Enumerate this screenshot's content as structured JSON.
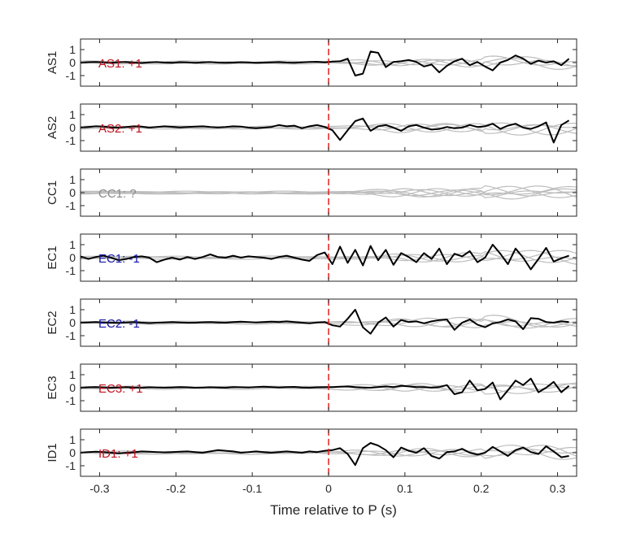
{
  "chart_data": {
    "type": "line",
    "xlabel": "Time relative to P (s)",
    "xlim": [
      -0.325,
      0.325
    ],
    "ylim": [
      -1.5,
      1.5
    ],
    "x_ticks": [
      -0.3,
      -0.2,
      -0.1,
      0,
      0.1,
      0.2,
      0.3
    ],
    "x_tick_labels": [
      "-0.3",
      "-0.2",
      "-0.1",
      "0",
      "0.1",
      "0.2",
      "0.3"
    ],
    "y_ticks": [
      -1,
      0,
      1
    ],
    "y_tick_labels": [
      "-1",
      "0",
      "1"
    ],
    "grid": false,
    "marker_time": 0,
    "colors": {
      "trace": "#000000",
      "background_traces": "#bdbdbd",
      "marker": "#e0201b",
      "positive": "#c1121f",
      "negative": "#1818a8",
      "unknown": "#8a8a8a"
    },
    "time": [
      -0.325,
      -0.315,
      -0.305,
      -0.295,
      -0.285,
      -0.275,
      -0.265,
      -0.255,
      -0.245,
      -0.235,
      -0.225,
      -0.215,
      -0.205,
      -0.195,
      -0.185,
      -0.175,
      -0.165,
      -0.155,
      -0.145,
      -0.135,
      -0.125,
      -0.115,
      -0.105,
      -0.095,
      -0.085,
      -0.075,
      -0.065,
      -0.055,
      -0.045,
      -0.035,
      -0.025,
      -0.015,
      -0.005,
      0.005,
      0.015,
      0.025,
      0.035,
      0.045,
      0.055,
      0.065,
      0.075,
      0.085,
      0.095,
      0.105,
      0.115,
      0.125,
      0.135,
      0.145,
      0.155,
      0.165,
      0.175,
      0.185,
      0.195,
      0.205,
      0.215,
      0.225,
      0.235,
      0.245,
      0.255,
      0.265,
      0.275,
      0.285,
      0.295,
      0.305,
      0.315
    ],
    "panels": [
      {
        "station": "AS1",
        "label": "AS1: +1",
        "label_color": "positive",
        "values": [
          0,
          0.03,
          0.05,
          0.02,
          -0.02,
          0.03,
          0.05,
          0,
          -0.03,
          0.02,
          0.04,
          0,
          -0.02,
          0.03,
          0.02,
          -0.01,
          0.02,
          0.04,
          0,
          -0.02,
          0,
          0.03,
          0.02,
          -0.02,
          0,
          0.02,
          0.04,
          0,
          -0.02,
          0.02,
          0.05,
          0.06,
          0.02,
          0.08,
          0.1,
          0.3,
          -1.0,
          -0.85,
          0.85,
          0.75,
          -0.35,
          0.05,
          0.1,
          0.2,
          0.05,
          -0.3,
          -0.15,
          -0.75,
          -0.25,
          0.1,
          0.3,
          -0.2,
          0.05,
          -0.3,
          -0.6,
          0,
          0.2,
          0.55,
          0.3,
          -0.1,
          0.15,
          0,
          0.1,
          -0.2,
          0.3
        ]
      },
      {
        "station": "AS2",
        "label": "AS2: +1",
        "label_color": "positive",
        "values": [
          0,
          0.05,
          0.1,
          0.08,
          0.02,
          0,
          0.05,
          0.1,
          0.08,
          0,
          0.05,
          0.1,
          0.06,
          0.02,
          0.05,
          0.08,
          0.1,
          0.05,
          0.02,
          0.05,
          0.1,
          0.08,
          0,
          -0.05,
          0,
          0.05,
          0.2,
          0.1,
          0.15,
          -0.05,
          0.1,
          0.2,
          0.05,
          -0.2,
          -0.95,
          -0.2,
          0.5,
          0.7,
          -0.25,
          0.1,
          0.2,
          0,
          -0.25,
          0.1,
          0.2,
          0,
          -0.15,
          -0.1,
          0.05,
          -0.05,
          0,
          0.2,
          0.05,
          0.1,
          0.3,
          -0.1,
          0.15,
          0.3,
          0,
          -0.1,
          0.1,
          0.4,
          -1.15,
          0.2,
          0.55
        ]
      },
      {
        "station": "CC1",
        "label": "CC1: ?",
        "label_color": "unknown",
        "values": null
      },
      {
        "station": "EC1",
        "label": "EC1: -1",
        "label_color": "negative",
        "values": [
          0.1,
          -0.1,
          0.05,
          0.15,
          0,
          -0.2,
          -0.1,
          0.05,
          0.1,
          0,
          -0.35,
          -0.15,
          0,
          -0.15,
          0.05,
          -0.1,
          0.05,
          0.25,
          0.05,
          0,
          0.15,
          0,
          0.1,
          0.05,
          0,
          -0.1,
          0.05,
          0.15,
          0,
          -0.15,
          -0.25,
          0.2,
          0.4,
          -0.5,
          0.85,
          -0.4,
          0.6,
          -0.6,
          0.9,
          -0.2,
          0.6,
          -0.55,
          0.35,
          0.05,
          -0.35,
          0.35,
          -0.1,
          0.7,
          -0.5,
          0.3,
          0.1,
          0.5,
          -0.35,
          0,
          1.0,
          0.3,
          -0.5,
          0.7,
          0,
          -0.9,
          -0.1,
          0.75,
          -0.3,
          -0.05,
          0.15
        ]
      },
      {
        "station": "EC2",
        "label": "EC2: -1",
        "label_color": "negative",
        "values": [
          0,
          0.02,
          0.05,
          0.02,
          0,
          -0.02,
          0.02,
          0.05,
          0,
          -0.03,
          0,
          0.02,
          0.05,
          0.02,
          0,
          0,
          0.03,
          0.05,
          0.02,
          0,
          0.05,
          0.08,
          0.05,
          0.02,
          0.05,
          0.08,
          0.05,
          0.1,
          0.05,
          0,
          -0.05,
          0.02,
          0.05,
          -0.2,
          -0.3,
          0.3,
          1.0,
          -0.35,
          -0.85,
          0,
          0.4,
          -0.3,
          0.2,
          0.05,
          0.1,
          -0.05,
          0.1,
          0.2,
          0.25,
          -0.55,
          0,
          0.25,
          -0.15,
          -0.35,
          -0.05,
          0.05,
          0.25,
          0.1,
          -0.5,
          0.35,
          0.3,
          0.05,
          0,
          0.1,
          0.05
        ]
      },
      {
        "station": "EC3",
        "label": "EC3: +1",
        "label_color": "positive",
        "values": [
          0,
          0.03,
          0.05,
          0.02,
          0,
          0.02,
          0.05,
          0.02,
          0,
          0.03,
          0.02,
          0,
          0.02,
          0.05,
          0.03,
          0,
          0.02,
          0.04,
          0.02,
          0,
          0.05,
          0.03,
          0.02,
          0.05,
          0.08,
          0.05,
          0.02,
          0.05,
          0.06,
          0.02,
          0,
          0.03,
          0.05,
          0.05,
          0.08,
          0.1,
          0.05,
          0.02,
          0,
          0.05,
          0.1,
          0.05,
          0.15,
          0.1,
          0.05,
          0.05,
          0,
          0.05,
          0.2,
          -0.5,
          -0.35,
          0.55,
          -0.2,
          -0.1,
          0.4,
          -0.9,
          -0.2,
          0.55,
          0.2,
          0.7,
          -0.35,
          0,
          0.45,
          -0.35,
          0.15
        ]
      },
      {
        "station": "ID1",
        "label": "ID1: +1",
        "label_color": "positive",
        "values": [
          0,
          0.05,
          0.08,
          0.05,
          0,
          -0.05,
          0,
          0.03,
          0.1,
          0.08,
          0.05,
          0.03,
          0.05,
          0.08,
          0.1,
          0.05,
          0,
          0.1,
          0.2,
          0.15,
          0.1,
          0,
          0.05,
          0.1,
          0.05,
          0,
          0.05,
          0.1,
          0.05,
          0,
          0.1,
          0.05,
          0.15,
          0.2,
          0.35,
          -0.1,
          -0.95,
          0.35,
          0.75,
          0.55,
          0.2,
          -0.35,
          0.4,
          0.15,
          0,
          0.35,
          -0.25,
          -0.45,
          0.05,
          0.1,
          0.3,
          0,
          -0.15,
          0,
          0.45,
          0.1,
          -0.25,
          0.2,
          0.4,
          0.05,
          -0.1,
          0.5,
          0.1,
          -0.35,
          -0.25
        ]
      }
    ]
  }
}
